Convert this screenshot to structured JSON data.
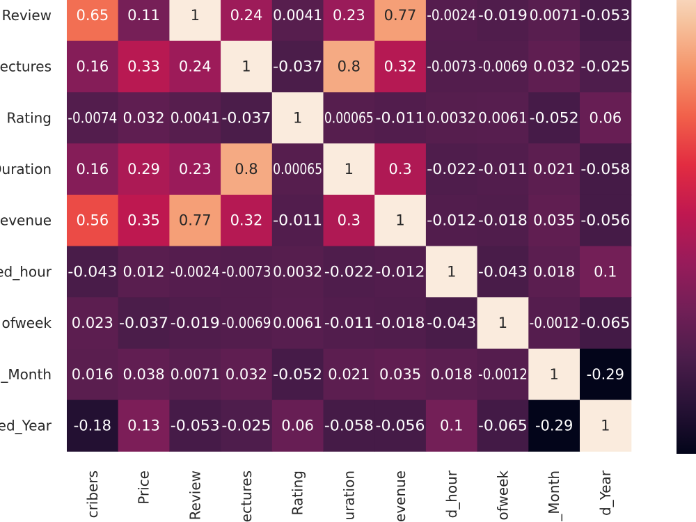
{
  "chart_data": {
    "type": "heatmap",
    "title": "",
    "xlabel": "",
    "ylabel": "",
    "colormap": "rocket",
    "vmin": -0.29,
    "vmax": 1,
    "grid": false,
    "legend": "colorbar-right",
    "row_labels": [
      "Review",
      "ectures",
      "Rating",
      "Duration",
      "evenue",
      "ed_hour",
      "ofweek",
      "_Month",
      "ed_Year"
    ],
    "col_labels": [
      "cribers",
      "Price",
      "Review",
      "ectures",
      "Rating",
      "uration",
      "evenue",
      "d_hour",
      "ofweek",
      "_Month",
      "d_Year"
    ],
    "values": [
      [
        0.65,
        0.11,
        1,
        0.24,
        0.0041,
        0.23,
        0.77,
        -0.0024,
        -0.019,
        0.0071,
        -0.053
      ],
      [
        0.16,
        0.33,
        0.24,
        1,
        -0.037,
        0.8,
        0.32,
        -0.0073,
        -0.0069,
        0.032,
        -0.025
      ],
      [
        -0.0074,
        0.032,
        0.0041,
        -0.037,
        1,
        0.00065,
        -0.011,
        0.0032,
        0.0061,
        -0.052,
        0.06
      ],
      [
        0.16,
        0.29,
        0.23,
        0.8,
        0.00065,
        1,
        0.3,
        -0.022,
        -0.011,
        0.021,
        -0.058
      ],
      [
        0.56,
        0.35,
        0.77,
        0.32,
        -0.011,
        0.3,
        1,
        -0.012,
        -0.018,
        0.035,
        -0.056
      ],
      [
        -0.043,
        0.012,
        -0.0024,
        -0.0073,
        0.0032,
        -0.022,
        -0.012,
        1,
        -0.043,
        0.018,
        0.1
      ],
      [
        0.023,
        -0.037,
        -0.019,
        -0.0069,
        0.0061,
        -0.011,
        -0.018,
        -0.043,
        1,
        -0.0012,
        -0.065
      ],
      [
        0.016,
        0.038,
        0.0071,
        0.032,
        -0.052,
        0.021,
        0.035,
        0.018,
        -0.0012,
        1,
        -0.29
      ],
      [
        -0.18,
        0.13,
        -0.053,
        -0.025,
        0.06,
        -0.058,
        -0.056,
        0.1,
        -0.065,
        -0.29,
        1
      ]
    ],
    "cell_text": [
      [
        "0.65",
        "0.11",
        "1",
        "0.24",
        "0.0041",
        "0.23",
        "0.77",
        "-0.0024",
        "-0.019",
        "0.0071",
        "-0.053"
      ],
      [
        "0.16",
        "0.33",
        "0.24",
        "1",
        "-0.037",
        "0.8",
        "0.32",
        "-0.0073",
        "-0.0069",
        "0.032",
        "-0.025"
      ],
      [
        "-0.0074",
        "0.032",
        "0.0041",
        "-0.037",
        "1",
        "0.00065",
        "-0.011",
        "0.0032",
        "0.0061",
        "-0.052",
        "0.06"
      ],
      [
        "0.16",
        "0.29",
        "0.23",
        "0.8",
        "0.00065",
        "1",
        "0.3",
        "-0.022",
        "-0.011",
        "0.021",
        "-0.058"
      ],
      [
        "0.56",
        "0.35",
        "0.77",
        "0.32",
        "-0.011",
        "0.3",
        "1",
        "-0.012",
        "-0.018",
        "0.035",
        "-0.056"
      ],
      [
        "-0.043",
        "0.012",
        "-0.0024",
        "-0.0073",
        "0.0032",
        "-0.022",
        "-0.012",
        "1",
        "-0.043",
        "0.018",
        "0.1"
      ],
      [
        "0.023",
        "-0.037",
        "-0.019",
        "-0.0069",
        "0.0061",
        "-0.011",
        "-0.018",
        "-0.043",
        "1",
        "-0.0012",
        "-0.065"
      ],
      [
        "0.016",
        "0.038",
        "0.0071",
        "0.032",
        "-0.052",
        "0.021",
        "0.035",
        "0.018",
        "-0.0012",
        "1",
        "-0.29"
      ],
      [
        "-0.18",
        "0.13",
        "-0.053",
        "-0.025",
        "0.06",
        "-0.058",
        "-0.056",
        "0.1",
        "-0.065",
        "-0.29",
        "1"
      ]
    ]
  }
}
